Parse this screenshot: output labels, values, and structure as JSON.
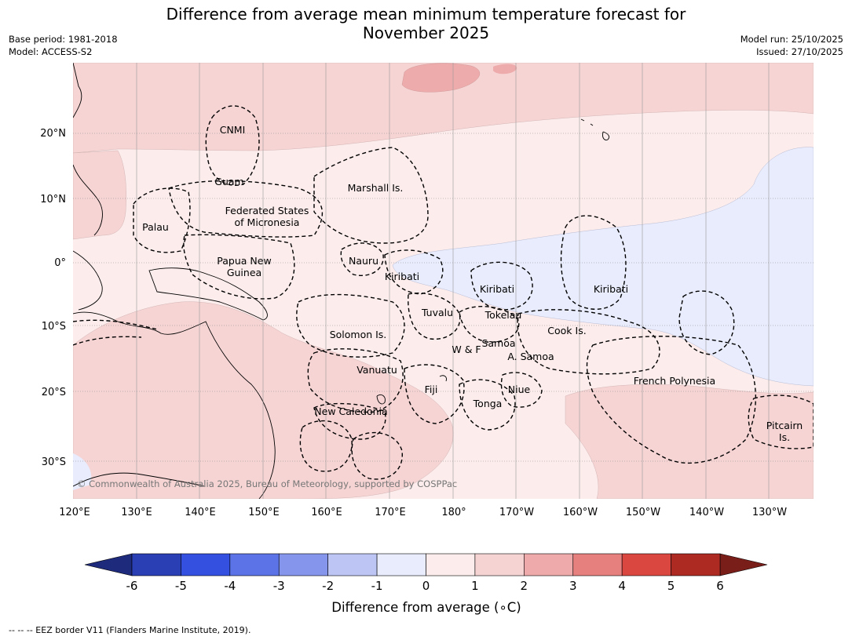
{
  "title": "Difference from average mean minimum temperature forecast for November 2025",
  "title_line1": "Difference from average mean minimum temperature forecast for",
  "title_line2": "November 2025",
  "base_period": "Base period: 1981-2018",
  "model": "Model: ACCESS-S2",
  "model_run": "Model run: 25/10/2025",
  "issued": "Issued: 27/10/2025",
  "copyright": "© Commonwealth of Australia 2025, Bureau of Meteorology, supported by COSPPac",
  "footnote": "--  --  -- EEZ border V11 (Flanders Marine Institute, 2019).",
  "axes": {
    "lon_labels": [
      "120°E",
      "130°E",
      "140°E",
      "150°E",
      "160°E",
      "170°E",
      "180°",
      "170°W",
      "160°W",
      "150°W",
      "140°W",
      "130°W"
    ],
    "lat_labels": [
      "20°N",
      "10°N",
      "0°",
      "10°S",
      "20°S",
      "30°S"
    ]
  },
  "regions": [
    {
      "name": "CNMI"
    },
    {
      "name": "Guam"
    },
    {
      "name": "Marshall Is."
    },
    {
      "name": "Federated States"
    },
    {
      "name": "of Micronesia"
    },
    {
      "name": "Palau"
    },
    {
      "name": "Papua New"
    },
    {
      "name": "Guinea"
    },
    {
      "name": "Nauru"
    },
    {
      "name": "Kiribati"
    },
    {
      "name": "Kiribati"
    },
    {
      "name": "Kiribati"
    },
    {
      "name": "Tuvalu"
    },
    {
      "name": "Tokelau"
    },
    {
      "name": "Solomon Is."
    },
    {
      "name": "Cook Is."
    },
    {
      "name": "W & F"
    },
    {
      "name": "Samoa"
    },
    {
      "name": "A. Samoa"
    },
    {
      "name": "Vanuatu"
    },
    {
      "name": "Fiji"
    },
    {
      "name": "Niue"
    },
    {
      "name": "French Polynesia"
    },
    {
      "name": "Tonga"
    },
    {
      "name": "New Caledonia"
    },
    {
      "name": "Pitcairn"
    },
    {
      "name": "Is."
    }
  ],
  "colorbar": {
    "label": "Difference from average (∘C)",
    "ticks": [
      "-6",
      "-5",
      "-4",
      "-3",
      "-2",
      "-1",
      "0",
      "1",
      "2",
      "3",
      "4",
      "5",
      "6"
    ],
    "colors": [
      "#2a3fb4",
      "#3350e0",
      "#5b73e6",
      "#8595ec",
      "#bcc5f4",
      "#e8ecfc",
      "#fcecec",
      "#f6d3d3",
      "#eeaaaa",
      "#e5807e",
      "#d94740",
      "#ad2a23"
    ],
    "extend_low_color": "#1e2a7c",
    "extend_high_color": "#7a1e1a"
  },
  "colors": {
    "light_warm": "#fcecec",
    "warm": "#f6d4d4",
    "warmer": "#eeabab",
    "cool": "#e8ecfc"
  }
}
